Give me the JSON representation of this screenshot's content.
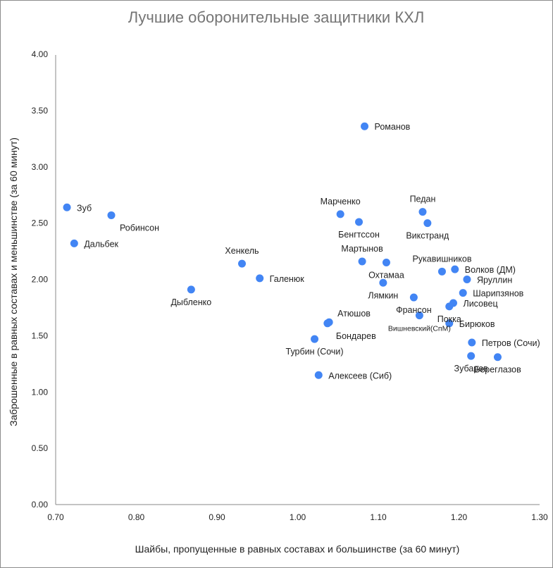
{
  "chart_data": {
    "type": "scatter",
    "title": "Лучшие оборонительные защитники КХЛ",
    "xlabel": "Шайбы, пропущенные в равных составах и большинстве (за 60 минут)",
    "ylabel": "Заброшенные в равных составах и меньшинстве (за 60 минут)",
    "xlim": [
      0.7,
      1.3
    ],
    "ylim": [
      0.0,
      4.0
    ],
    "x_ticks": [
      "0.70",
      "0.80",
      "0.90",
      "1.00",
      "1.10",
      "1.20",
      "1.30"
    ],
    "y_ticks": [
      "0.00",
      "0.50",
      "1.00",
      "1.50",
      "2.00",
      "2.50",
      "3.00",
      "3.50",
      "4.00"
    ],
    "grid": false,
    "legend": "none",
    "point_color": "#4285f4",
    "points": [
      {
        "label": "Зуб",
        "x": 0.714,
        "y": 2.64,
        "pos": "right"
      },
      {
        "label": "Робинсон",
        "x": 0.769,
        "y": 2.57,
        "pos": "below-right"
      },
      {
        "label": "Дальбек",
        "x": 0.723,
        "y": 2.32,
        "pos": "right"
      },
      {
        "label": "Дыбленко",
        "x": 0.868,
        "y": 1.91,
        "pos": "below"
      },
      {
        "label": "Хенкель",
        "x": 0.931,
        "y": 2.14,
        "pos": "above"
      },
      {
        "label": "Галенюк",
        "x": 0.953,
        "y": 2.01,
        "pos": "right"
      },
      {
        "label": "Романов",
        "x": 1.083,
        "y": 3.36,
        "pos": "right"
      },
      {
        "label": "Марченко",
        "x": 1.053,
        "y": 2.58,
        "pos": "above"
      },
      {
        "label": "Бенгтссон",
        "x": 1.076,
        "y": 2.51,
        "pos": "below"
      },
      {
        "label": "Педан",
        "x": 1.155,
        "y": 2.6,
        "pos": "above"
      },
      {
        "label": "Викстранд",
        "x": 1.161,
        "y": 2.5,
        "pos": "below"
      },
      {
        "label": "Мартынов",
        "x": 1.08,
        "y": 2.16,
        "pos": "above"
      },
      {
        "label": "Охтамаа",
        "x": 1.11,
        "y": 2.15,
        "pos": "below"
      },
      {
        "label": "Лямкин",
        "x": 1.106,
        "y": 1.97,
        "pos": "below"
      },
      {
        "label": "Рукавишников",
        "x": 1.179,
        "y": 2.07,
        "pos": "above"
      },
      {
        "label": "Волков (ДМ)",
        "x": 1.195,
        "y": 2.09,
        "pos": "right"
      },
      {
        "label": "Яруллин",
        "x": 1.21,
        "y": 2.0,
        "pos": "right"
      },
      {
        "label": "Шарипзянов",
        "x": 1.205,
        "y": 1.88,
        "pos": "right"
      },
      {
        "label": "Лисовец",
        "x": 1.193,
        "y": 1.79,
        "pos": "right"
      },
      {
        "label": "Покка",
        "x": 1.188,
        "y": 1.76,
        "pos": "below"
      },
      {
        "label": "Франсон",
        "x": 1.144,
        "y": 1.84,
        "pos": "below"
      },
      {
        "label": "Вишневский(СпМ)",
        "x": 1.151,
        "y": 1.68,
        "pos": "below",
        "small": true
      },
      {
        "label": "Бирюков",
        "x": 1.188,
        "y": 1.61,
        "pos": "right"
      },
      {
        "label": "Атюшов",
        "x": 1.039,
        "y": 1.62,
        "pos": "above-right"
      },
      {
        "label": "Бондарев",
        "x": 1.037,
        "y": 1.61,
        "pos": "below-right"
      },
      {
        "label": "Турбин (Сочи)",
        "x": 1.021,
        "y": 1.47,
        "pos": "below"
      },
      {
        "label": "Алексеев (Сиб)",
        "x": 1.026,
        "y": 1.15,
        "pos": "right"
      },
      {
        "label": "Петров (Сочи)",
        "x": 1.216,
        "y": 1.44,
        "pos": "right"
      },
      {
        "label": "Зубарев",
        "x": 1.215,
        "y": 1.32,
        "pos": "below"
      },
      {
        "label": "Береглазов",
        "x": 1.248,
        "y": 1.31,
        "pos": "below"
      }
    ]
  }
}
